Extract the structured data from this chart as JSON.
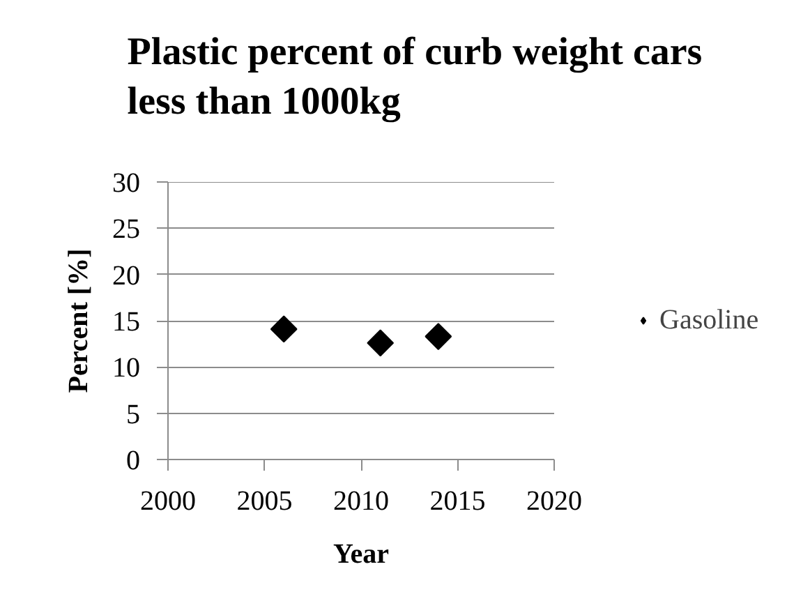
{
  "chart_data": {
    "type": "scatter",
    "title": "Plastic percent of curb weight cars less than 1000kg",
    "xlabel": "Year",
    "ylabel": "Percent [%]",
    "x": [
      2006,
      2011,
      2014
    ],
    "series": [
      {
        "name": "Gasoline",
        "color": "#000000",
        "values": [
          14.1,
          12.6,
          13.3
        ]
      }
    ],
    "xlim": [
      2000,
      2020
    ],
    "ylim": [
      0,
      30
    ],
    "xticks": [
      2000,
      2005,
      2010,
      2015,
      2020
    ],
    "yticks": [
      0,
      5,
      10,
      15,
      20,
      25,
      30
    ],
    "grid": "y",
    "legend": "right",
    "marker": "diamond"
  }
}
